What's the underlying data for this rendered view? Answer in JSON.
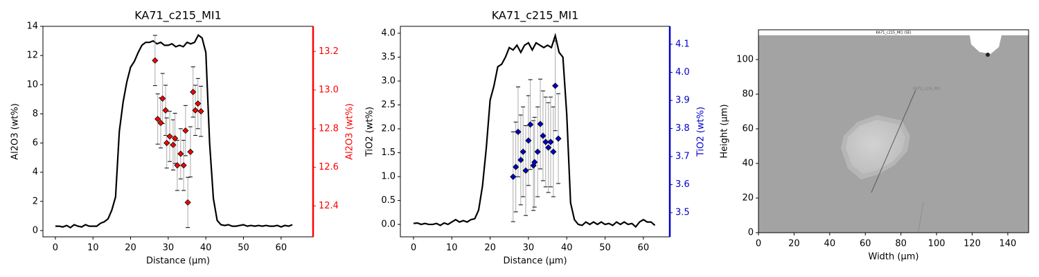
{
  "chart_data": [
    {
      "type": "line",
      "title": "KA71_c215_MI1",
      "xlabel": "Distance (µm)",
      "ylabel": "Al2O3 (wt%)",
      "y2label": "Al2O3 (wt%)",
      "xlim": [
        -3.3,
        68.5
      ],
      "xticks": [
        0,
        10,
        20,
        30,
        40,
        50,
        60
      ],
      "ylim": [
        -0.43,
        14.0
      ],
      "yticks": [
        0,
        2,
        4,
        6,
        8,
        10,
        12,
        14
      ],
      "y2lim": [
        12.24,
        13.33
      ],
      "y2ticks": [
        12.4,
        12.6,
        {
          "value": 13.0,
          "label": "13.0"
        },
        12.8,
        13.2
      ],
      "x": [
        0,
        1,
        2,
        3,
        4,
        5,
        6,
        7,
        8,
        9,
        10,
        11,
        12,
        13,
        14,
        15,
        16,
        17,
        18,
        19,
        20,
        21,
        22,
        23,
        24,
        25,
        26,
        27,
        28,
        29,
        30,
        31,
        32,
        33,
        34,
        35,
        36,
        37,
        38,
        39,
        40,
        41,
        42,
        43,
        44,
        45,
        46,
        47,
        48,
        49,
        50,
        51,
        52,
        53,
        54,
        55,
        56,
        57,
        58,
        59,
        60,
        61,
        62,
        63
      ],
      "series": [
        {
          "color": "#000000",
          "values": [
            0.3,
            0.3,
            0.25,
            0.35,
            0.2,
            0.4,
            0.3,
            0.25,
            0.4,
            0.3,
            0.3,
            0.3,
            0.5,
            0.6,
            0.8,
            1.4,
            2.3,
            6.8,
            8.8,
            10.2,
            11.2,
            11.6,
            12.2,
            12.7,
            12.9,
            12.9,
            13.0,
            12.8,
            12.9,
            12.7,
            12.7,
            12.8,
            12.6,
            12.7,
            12.6,
            12.9,
            12.8,
            12.9,
            13.4,
            13.2,
            12.2,
            6.0,
            2.2,
            0.7,
            0.4,
            0.35,
            0.4,
            0.3,
            0.3,
            0.35,
            0.4,
            0.3,
            0.35,
            0.3,
            0.35,
            0.3,
            0.35,
            0.3,
            0.3,
            0.35,
            0.25,
            0.35,
            0.3,
            0.4
          ]
        },
        {
          "color": "#ff0000",
          "axis": "y2",
          "marker": "diamond",
          "x": [
            26.5,
            27.2,
            28.0,
            28.5,
            29.3,
            29.6,
            30.4,
            31.3,
            31.8,
            32.4,
            33.3,
            34.1,
            34.6,
            35.2,
            35.9,
            36.6,
            37.2,
            37.9,
            38.7
          ],
          "values": [
            13.153,
            12.85,
            12.83,
            12.956,
            12.895,
            12.726,
            12.76,
            12.716,
            12.75,
            12.61,
            12.67,
            12.61,
            12.79,
            12.418,
            12.68,
            12.99,
            12.895,
            12.93,
            12.89
          ],
          "errors": [
            0.13,
            0.13,
            0.13,
            0.13,
            0.13,
            0.13,
            0.13,
            0.13,
            0.13,
            0.13,
            0.13,
            0.13,
            0.13,
            0.13,
            0.13,
            0.13,
            0.13,
            0.13,
            0.13
          ]
        }
      ]
    },
    {
      "type": "line",
      "title": "KA71_c215_MI1",
      "xlabel": "Distance (µm)",
      "ylabel": "TiO2 (wt%)",
      "y2label": "TiO2 (wt%)",
      "xlim": [
        -3.43,
        66.9
      ],
      "xticks": [
        0,
        10,
        20,
        30,
        40,
        50,
        60
      ],
      "ylim": [
        -0.26,
        4.145
      ],
      "yticks": [
        {
          "value": 0,
          "label": "0.0"
        },
        0.5,
        {
          "value": 1,
          "label": "1.0"
        },
        1.5,
        {
          "value": 2,
          "label": "2.0"
        },
        2.5,
        {
          "value": 3,
          "label": "3.0"
        },
        3.5,
        {
          "value": 4,
          "label": "4.0"
        }
      ],
      "y2lim": [
        3.414,
        4.164
      ],
      "y2ticks": [
        3.5,
        3.6,
        3.7,
        3.8,
        3.9,
        {
          "value": 4.0,
          "label": "4.0"
        },
        4.1
      ],
      "x": [
        0,
        1,
        2,
        3,
        4,
        5,
        6,
        7,
        8,
        9,
        10,
        11,
        12,
        13,
        14,
        15,
        16,
        17,
        18,
        19,
        20,
        21,
        22,
        23,
        24,
        25,
        26,
        27,
        28,
        29,
        30,
        31,
        32,
        33,
        34,
        35,
        36,
        37,
        38,
        39,
        40,
        41,
        42,
        43,
        44,
        45,
        46,
        47,
        48,
        49,
        50,
        51,
        52,
        53,
        54,
        55,
        56,
        57,
        58,
        59,
        60,
        61,
        62,
        63
      ],
      "series": [
        {
          "color": "#000000",
          "values": [
            0.02,
            0.03,
            0.0,
            0.02,
            0.0,
            0.0,
            0.02,
            -0.02,
            0.03,
            0.0,
            0.05,
            0.1,
            0.05,
            0.08,
            0.05,
            0.1,
            0.12,
            0.3,
            0.8,
            1.6,
            2.6,
            2.9,
            3.3,
            3.35,
            3.5,
            3.7,
            3.65,
            3.75,
            3.6,
            3.75,
            3.8,
            3.65,
            3.8,
            3.75,
            3.7,
            3.75,
            3.7,
            3.95,
            3.6,
            3.5,
            2.3,
            0.45,
            0.1,
            0.0,
            -0.02,
            0.05,
            0.0,
            0.05,
            0.0,
            0.05,
            0.0,
            0.02,
            -0.02,
            0.05,
            0.0,
            0.05,
            0.0,
            0.02,
            -0.05,
            0.05,
            0.1,
            0.05,
            0.05,
            -0.02
          ]
        },
        {
          "color": "#0000cc",
          "axis": "y2",
          "marker": "diamond",
          "x": [
            26.0,
            26.7,
            27.3,
            28.0,
            28.6,
            29.3,
            30.0,
            30.5,
            31.3,
            31.6,
            32.4,
            33.1,
            33.8,
            34.5,
            35.2,
            35.8,
            36.5,
            37.0,
            37.8
          ],
          "values": [
            3.628,
            3.663,
            3.788,
            3.688,
            3.717,
            3.65,
            3.757,
            3.814,
            3.668,
            3.68,
            3.717,
            3.816,
            3.774,
            3.752,
            3.732,
            3.752,
            3.717,
            3.952,
            3.764
          ],
          "errors": [
            0.16,
            0.16,
            0.16,
            0.16,
            0.16,
            0.16,
            0.16,
            0.16,
            0.16,
            0.16,
            0.16,
            0.16,
            0.16,
            0.16,
            0.16,
            0.16,
            0.16,
            0.16,
            0.16
          ]
        }
      ]
    },
    {
      "type": "image",
      "xlabel": "Width (µm)",
      "ylabel": "Height (µm)",
      "image_title": "KA71_c215_MI1 (SE)",
      "annotation": "KA71_c215_MI1",
      "xlim": [
        0,
        151.7
      ],
      "xticks": [
        0,
        20,
        40,
        60,
        80,
        100,
        120,
        140
      ],
      "ylim": [
        0,
        117.2
      ],
      "yticks": [
        0,
        20,
        40,
        60,
        80,
        100
      ]
    }
  ]
}
